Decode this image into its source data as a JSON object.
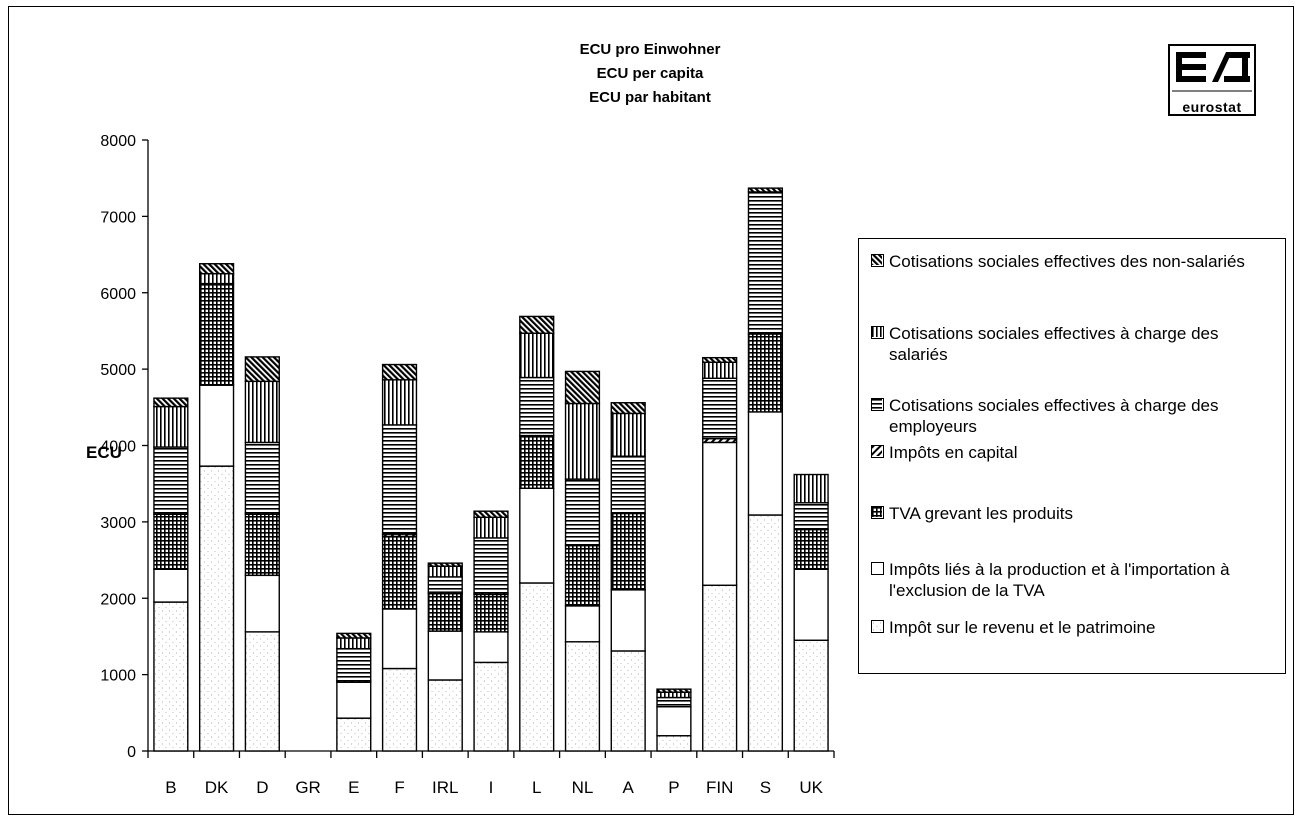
{
  "title_lines": [
    "ECU pro Einwohner",
    "ECU per capita",
    "ECU par habitant"
  ],
  "logo": {
    "text": "eurostat"
  },
  "chart_data": {
    "type": "bar",
    "stacked": true,
    "categories": [
      "B",
      "DK",
      "D",
      "GR",
      "E",
      "F",
      "IRL",
      "I",
      "L",
      "NL",
      "A",
      "P",
      "FIN",
      "S",
      "UK"
    ],
    "ylabel": "ECU",
    "ylim": [
      0,
      8000
    ],
    "yticks": [
      "0",
      "1000",
      "2000",
      "3000",
      "4000",
      "5000",
      "6000",
      "7000",
      "8000"
    ],
    "grid": false,
    "legend_position": "right",
    "series": [
      {
        "name": "Impôt sur le revenu et le patrimoine",
        "pattern": "stipple",
        "values": [
          1950,
          3730,
          1560,
          0,
          430,
          1080,
          930,
          1160,
          2200,
          1430,
          1310,
          200,
          2170,
          3090,
          1450
        ]
      },
      {
        "name": "Impôts liés à la production et à l'importation à l'exclusion de la TVA",
        "pattern": "white",
        "values": [
          430,
          1060,
          740,
          0,
          470,
          780,
          640,
          400,
          1240,
          470,
          800,
          380,
          1870,
          1350,
          930
        ]
      },
      {
        "name": "TVA grevant les produits",
        "pattern": "grid",
        "values": [
          720,
          1330,
          800,
          0,
          0,
          950,
          490,
          490,
          690,
          790,
          1000,
          0,
          0,
          1020,
          520
        ]
      },
      {
        "name": "Impôts en capital",
        "pattern": "diagonal",
        "values": [
          20,
          0,
          20,
          0,
          20,
          30,
          20,
          20,
          0,
          0,
          0,
          0,
          50,
          0,
          0
        ]
      },
      {
        "name": "Cotisations sociales effectives à charge des employeurs",
        "pattern": "horizontal",
        "values": [
          860,
          0,
          920,
          0,
          420,
          1430,
          200,
          720,
          760,
          870,
          750,
          120,
          790,
          1860,
          350
        ]
      },
      {
        "name": "Cotisations sociales effectives à charge des salariés",
        "pattern": "vertical",
        "values": [
          530,
          130,
          800,
          0,
          140,
          590,
          140,
          270,
          580,
          990,
          560,
          70,
          210,
          0,
          370
        ]
      },
      {
        "name": "Cotisations sociales effectives des non-salariés",
        "pattern": "dense-diagonal",
        "values": [
          110,
          130,
          320,
          0,
          60,
          200,
          40,
          80,
          220,
          420,
          140,
          40,
          60,
          50,
          0
        ]
      }
    ]
  }
}
